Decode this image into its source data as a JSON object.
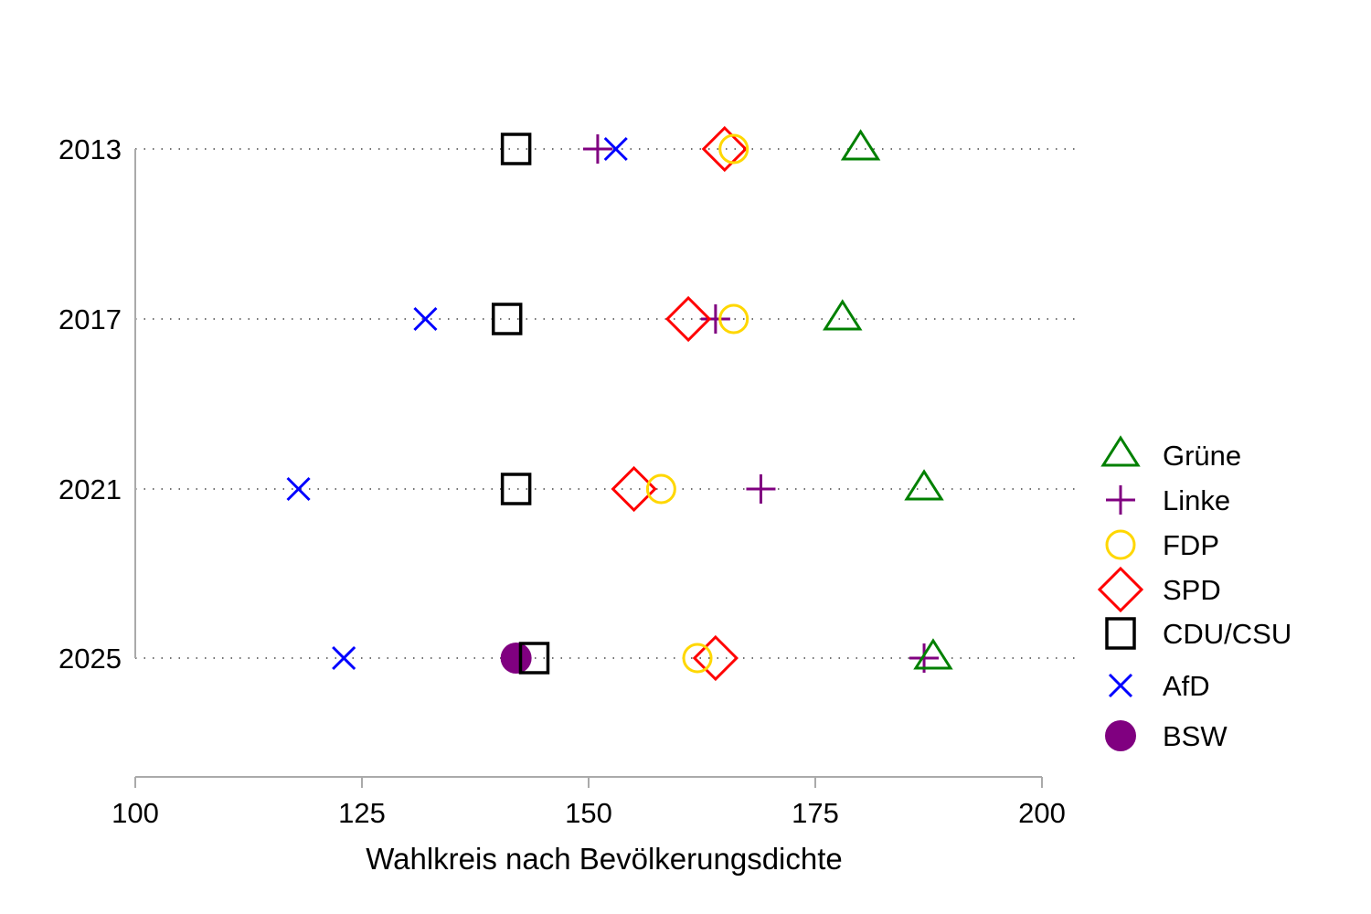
{
  "chart_data": {
    "type": "scatter",
    "title": "",
    "xlabel": "Wahlkreis nach Bevölkerungsdichte",
    "ylabel": "",
    "xlim": [
      100,
      200
    ],
    "xticks": [
      100,
      125,
      150,
      175,
      200
    ],
    "categories": [
      "2013",
      "2017",
      "2021",
      "2025"
    ],
    "grid": "dotted horizontal lines per year",
    "legend_position": "right",
    "series": [
      {
        "name": "Grüne",
        "marker": "triangle",
        "color": "#008000",
        "values": [
          180,
          178,
          187,
          188
        ]
      },
      {
        "name": "Linke",
        "marker": "plus",
        "color": "#800080",
        "values": [
          151,
          164,
          169,
          187
        ]
      },
      {
        "name": "FDP",
        "marker": "circle",
        "color": "#FFD700",
        "values": [
          166,
          166,
          158,
          162
        ]
      },
      {
        "name": "SPD",
        "marker": "diamond",
        "color": "#FF0000",
        "values": [
          165,
          161,
          155,
          164
        ]
      },
      {
        "name": "CDU/CSU",
        "marker": "square",
        "color": "#000000",
        "values": [
          142,
          141,
          142,
          144
        ]
      },
      {
        "name": "AfD",
        "marker": "x",
        "color": "#0000FF",
        "values": [
          153,
          132,
          118,
          123
        ]
      },
      {
        "name": "BSW",
        "marker": "filled-circle",
        "color": "#800080",
        "values": [
          null,
          null,
          null,
          142
        ]
      }
    ]
  }
}
